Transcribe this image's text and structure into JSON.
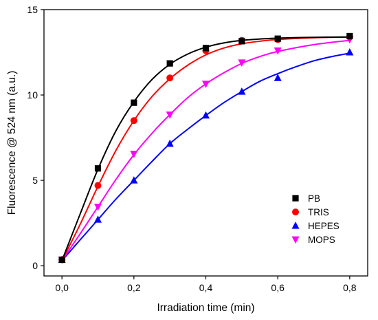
{
  "chart_data": {
    "type": "scatter",
    "xlabel": "Irradiation time (min)",
    "ylabel": "Fluorescence @ 524 nm (a.u.)",
    "xlim": [
      -0.05,
      0.85
    ],
    "ylim": [
      -0.6,
      15
    ],
    "x_ticks": [
      0.0,
      0.2,
      0.4,
      0.6,
      0.8
    ],
    "x_tick_labels": [
      "0,0",
      "0,2",
      "0,4",
      "0,6",
      "0,8"
    ],
    "y_ticks": [
      0,
      5,
      10,
      15
    ],
    "y_tick_labels": [
      "0",
      "5",
      "10",
      "15"
    ],
    "fitted_curves": true,
    "legend_position": "bottom-right",
    "series": [
      {
        "name": "PB",
        "marker": "square",
        "color": "#000000",
        "x": [
          0.0,
          0.1,
          0.2,
          0.3,
          0.4,
          0.5,
          0.6,
          0.8
        ],
        "y": [
          0.35,
          5.7,
          9.55,
          11.85,
          12.75,
          13.15,
          13.3,
          13.45
        ],
        "fit_x": [
          0.0,
          0.05,
          0.1,
          0.15,
          0.2,
          0.25,
          0.3,
          0.35,
          0.4,
          0.45,
          0.5,
          0.55,
          0.6,
          0.7,
          0.8
        ],
        "fit_y": [
          0.3,
          3.0,
          5.65,
          7.9,
          9.6,
          10.9,
          11.8,
          12.4,
          12.8,
          13.05,
          13.2,
          13.28,
          13.33,
          13.38,
          13.4
        ]
      },
      {
        "name": "TRIS",
        "marker": "circle",
        "color": "#ff0000",
        "x": [
          0.0,
          0.1,
          0.2,
          0.3,
          0.4,
          0.5,
          0.6,
          0.8
        ],
        "y": [
          0.35,
          4.7,
          8.5,
          11.0,
          12.6,
          13.2,
          13.25,
          13.4
        ],
        "fit_x": [
          0.0,
          0.05,
          0.1,
          0.15,
          0.2,
          0.25,
          0.3,
          0.35,
          0.4,
          0.45,
          0.5,
          0.55,
          0.6,
          0.7,
          0.8
        ],
        "fit_y": [
          0.3,
          2.4,
          4.65,
          6.75,
          8.5,
          9.9,
          10.95,
          11.75,
          12.35,
          12.75,
          13.0,
          13.15,
          13.25,
          13.35,
          13.4
        ]
      },
      {
        "name": "HEPES",
        "marker": "triangle-up",
        "color": "#0000ff",
        "x": [
          0.0,
          0.1,
          0.2,
          0.3,
          0.4,
          0.5,
          0.6,
          0.8
        ],
        "y": [
          0.35,
          2.7,
          5.0,
          7.15,
          8.8,
          10.2,
          11.0,
          12.5
        ],
        "fit_x": [
          0.0,
          0.05,
          0.1,
          0.15,
          0.2,
          0.25,
          0.3,
          0.35,
          0.4,
          0.45,
          0.5,
          0.55,
          0.6,
          0.65,
          0.7,
          0.75,
          0.8
        ],
        "fit_y": [
          0.3,
          1.5,
          2.7,
          3.9,
          5.0,
          6.1,
          7.15,
          8.0,
          8.8,
          9.55,
          10.2,
          10.8,
          11.25,
          11.65,
          12.0,
          12.25,
          12.45
        ]
      },
      {
        "name": "MOPS",
        "marker": "triangle-down",
        "color": "#ff00ff",
        "x": [
          0.0,
          0.1,
          0.2,
          0.3,
          0.4,
          0.5,
          0.6,
          0.8
        ],
        "y": [
          0.35,
          3.45,
          6.55,
          8.85,
          10.65,
          11.9,
          12.6,
          13.25
        ],
        "fit_x": [
          0.0,
          0.05,
          0.1,
          0.15,
          0.2,
          0.25,
          0.3,
          0.35,
          0.4,
          0.45,
          0.5,
          0.55,
          0.6,
          0.7,
          0.8
        ],
        "fit_y": [
          0.3,
          1.85,
          3.45,
          5.05,
          6.5,
          7.75,
          8.85,
          9.85,
          10.65,
          11.3,
          11.85,
          12.25,
          12.55,
          12.95,
          13.2
        ]
      }
    ]
  }
}
